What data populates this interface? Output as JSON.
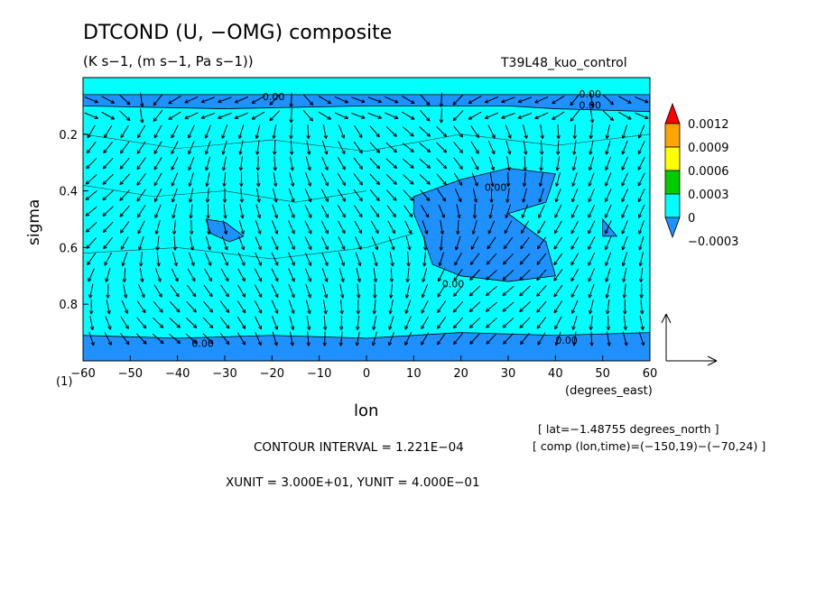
{
  "header": {
    "title": "DTCOND (U, −OMG) composite",
    "units": "(K s−1, (m s−1, Pa s−1))",
    "run_id": "T39L48_kuo_control"
  },
  "footer": {
    "contour_interval": "CONTOUR INTERVAL = 1.221E−04",
    "vector_units": "XUNIT = 3.000E+01, YUNIT = 4.000E−01",
    "lat_info": "[ lat=−1.48755 degrees_north ]",
    "comp_info": "[ comp (lon,time)=(−150,19)−(−70,24) ]",
    "panel_number": "(1)"
  },
  "colors": {
    "background_fill": "#00ffff",
    "negative_fill": "#1e90ff",
    "arrow": "#000000"
  },
  "chart_data": {
    "type": "contour+vector",
    "xlabel": "lon",
    "xunits": "(degrees_east)",
    "ylabel": "sigma",
    "xlim": [
      -60,
      60
    ],
    "ylim": [
      1.0,
      0.0
    ],
    "x_ticks": [
      "−60",
      "−50",
      "−40",
      "−30",
      "−20",
      "−10",
      "0",
      "10",
      "20",
      "30",
      "40",
      "50",
      "60"
    ],
    "x_tick_values": [
      -60,
      -50,
      -40,
      -30,
      -20,
      -10,
      0,
      10,
      20,
      30,
      40,
      50,
      60
    ],
    "y_ticks": [
      "0.2",
      "0.4",
      "0.6",
      "0.8"
    ],
    "y_tick_values": [
      0.2,
      0.4,
      0.6,
      0.8
    ],
    "colorbar": {
      "labels": [
        "0.0012",
        "0.0009",
        "0.0006",
        "0.0003",
        "0",
        "−0.0003"
      ],
      "colors": [
        "#ff0000",
        "#ffa500",
        "#ffff00",
        "#00cc00",
        "#00ffff",
        "#1e90ff"
      ]
    },
    "contour_labels": [
      "0.00",
      "0.00",
      "0.00",
      "0.00",
      "0.00",
      "0.00",
      "0.00"
    ],
    "negative_regions": [
      {
        "name": "east-mid",
        "points": [
          [
            10,
            0.42
          ],
          [
            20,
            0.36
          ],
          [
            30,
            0.32
          ],
          [
            40,
            0.34
          ],
          [
            38,
            0.44
          ],
          [
            30,
            0.48
          ],
          [
            38,
            0.58
          ],
          [
            40,
            0.7
          ],
          [
            30,
            0.72
          ],
          [
            20,
            0.7
          ],
          [
            14,
            0.66
          ],
          [
            12,
            0.56
          ],
          [
            10,
            0.48
          ]
        ]
      },
      {
        "name": "west-blob",
        "points": [
          [
            -34,
            0.5
          ],
          [
            -30,
            0.51
          ],
          [
            -26,
            0.56
          ],
          [
            -29,
            0.58
          ],
          [
            -33,
            0.55
          ]
        ]
      },
      {
        "name": "east-edge",
        "points": [
          [
            50,
            0.5
          ],
          [
            53,
            0.56
          ],
          [
            50,
            0.56
          ]
        ]
      },
      {
        "name": "surface-band",
        "points": [
          [
            -60,
            0.91
          ],
          [
            -40,
            0.92
          ],
          [
            -20,
            0.91
          ],
          [
            0,
            0.92
          ],
          [
            20,
            0.9
          ],
          [
            40,
            0.91
          ],
          [
            60,
            0.9
          ],
          [
            60,
            1.0
          ],
          [
            -60,
            1.0
          ]
        ]
      },
      {
        "name": "top-band",
        "points": [
          [
            -60,
            0.06
          ],
          [
            60,
            0.06
          ],
          [
            60,
            0.12
          ],
          [
            40,
            0.11
          ],
          [
            30,
            0.1
          ],
          [
            0,
            0.1
          ],
          [
            -30,
            0.11
          ],
          [
            -60,
            0.1
          ]
        ]
      }
    ],
    "vectors": {
      "scale_x_unit": 30,
      "scale_y_unit": 0.4
    }
  }
}
